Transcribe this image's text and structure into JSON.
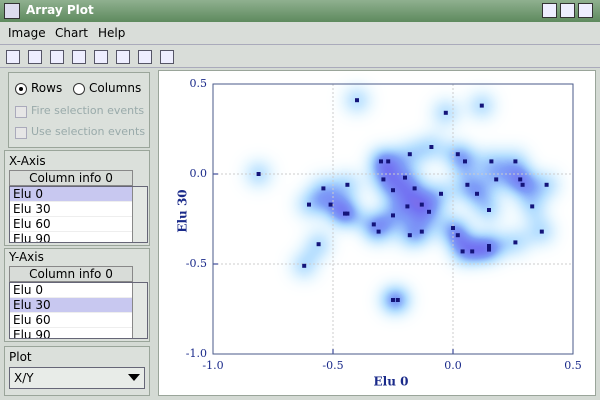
{
  "window": {
    "title": "Array Plot"
  },
  "menu": [
    "Image",
    "Chart",
    "Help"
  ],
  "options": {
    "rows": "Rows",
    "columns": "Columns",
    "fire": "Fire selection events",
    "use": "Use selection events"
  },
  "x_axis_panel": {
    "label": "X-Axis",
    "header": "Column info 0",
    "items": [
      "Elu 0",
      "Elu 30",
      "Elu 60",
      "Elu 90"
    ]
  },
  "y_axis_panel": {
    "label": "Y-Axis",
    "header": "Column info 0",
    "items": [
      "Elu 0",
      "Elu 30",
      "Elu 60",
      "Elu 90"
    ]
  },
  "plot_panel": {
    "label": "Plot",
    "selected": "X/Y"
  },
  "chart_data": {
    "type": "scatter",
    "x_label": "Elu 0",
    "y_label": "Elu 30",
    "color": "#14147a",
    "grid": true,
    "xlim": [
      -1,
      0.5
    ],
    "ylim": [
      -1,
      0.5
    ],
    "xticks": [
      {
        "value": -1,
        "label": "-1.0"
      },
      -0.5,
      {
        "value": 0,
        "label": "0.0"
      },
      0.5
    ],
    "yticks": [
      {
        "value": -1,
        "label": "-1.0"
      },
      -0.5,
      {
        "value": 0,
        "label": "0.0"
      },
      0.5
    ],
    "x": [
      -0.81,
      -0.4,
      -0.03,
      0.12,
      -0.3,
      -0.27,
      -0.18,
      -0.09,
      0.02,
      0.05,
      0.16,
      0.26,
      -0.44,
      -0.54,
      -0.6,
      -0.51,
      -0.45,
      -0.44,
      -0.29,
      -0.25,
      -0.2,
      -0.16,
      -0.19,
      -0.13,
      -0.1,
      -0.13,
      -0.18,
      -0.33,
      -0.31,
      -0.25,
      0.0,
      0.02,
      0.04,
      0.08,
      0.15,
      0.15,
      0.26,
      0.37,
      0.33,
      0.39,
      0.29,
      0.28,
      0.18,
      0.06,
      0.15,
      0.1,
      -0.56,
      -0.62,
      -0.25,
      -0.23,
      -0.05
    ],
    "values": [
      0.0,
      0.41,
      0.34,
      0.38,
      0.07,
      0.07,
      0.11,
      0.15,
      0.11,
      0.07,
      0.07,
      0.07,
      -0.06,
      -0.08,
      -0.17,
      -0.17,
      -0.22,
      -0.22,
      -0.03,
      -0.09,
      -0.02,
      -0.08,
      -0.18,
      -0.17,
      -0.21,
      -0.32,
      -0.34,
      -0.28,
      -0.32,
      -0.23,
      -0.3,
      -0.34,
      -0.43,
      -0.43,
      -0.4,
      -0.42,
      -0.38,
      -0.32,
      -0.18,
      -0.06,
      -0.06,
      -0.03,
      -0.03,
      -0.06,
      -0.2,
      -0.11,
      -0.39,
      -0.51,
      -0.7,
      -0.7,
      -0.11
    ]
  }
}
